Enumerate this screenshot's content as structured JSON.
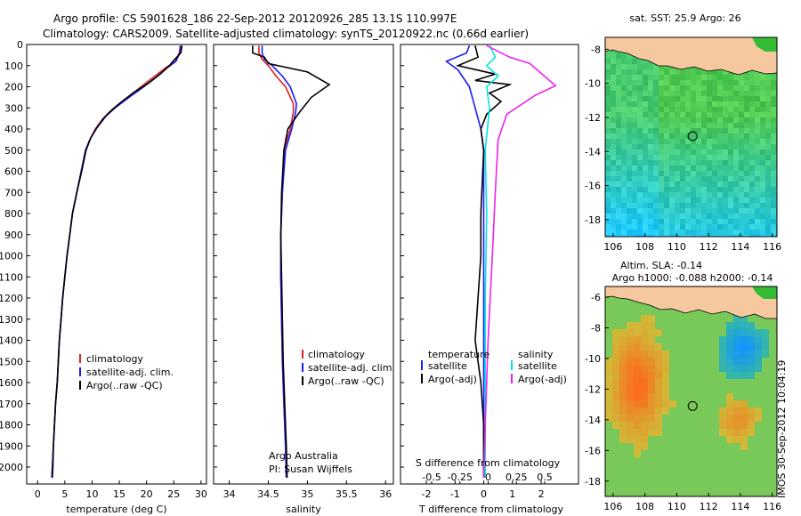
{
  "header": {
    "title_line1": "Argo profile: CS 5901628_186 22-Sep-2012 20120926_285 13.1S 110.997E",
    "title_line2": "Climatology: CARS2009. Satellite-adjusted climatology: synTS_20120922.nc (0.66d earlier)"
  },
  "timestamp": "IMOS 30-Sep-2012 10:04:19",
  "colors": {
    "climatology": "#dd2222",
    "satellite": "#1a1aff",
    "argo": "#000000",
    "sat_sal": "#00e5e5",
    "argo_sal": "#ee22ee",
    "land": "#f5c8a0"
  },
  "chart_data": [
    {
      "type": "line",
      "xlabel": "temperature (deg C)",
      "ylabel": "",
      "xlim": [
        -2,
        31
      ],
      "ylim": [
        2080,
        0
      ],
      "xticks": [
        0,
        5,
        10,
        15,
        20,
        25,
        30
      ],
      "yticks": [
        0,
        100,
        200,
        300,
        400,
        500,
        600,
        700,
        800,
        900,
        1000,
        1100,
        1200,
        1300,
        1400,
        1500,
        1600,
        1700,
        1800,
        1900,
        2000
      ],
      "legend": {
        "placement": "lower-center",
        "labels": [
          "climatology",
          "satellite-adj. clim.",
          "Argo(..raw -QC)"
        ]
      },
      "series": [
        {
          "name": "climatology",
          "color": "#dd2222",
          "points": [
            [
              26.2,
              5
            ],
            [
              26,
              40
            ],
            [
              25.3,
              80
            ],
            [
              23.5,
              110
            ],
            [
              21.5,
              150
            ],
            [
              19,
              200
            ],
            [
              16.5,
              250
            ],
            [
              14,
              300
            ],
            [
              12,
              350
            ],
            [
              10.6,
              400
            ],
            [
              9.6,
              450
            ],
            [
              8.8,
              500
            ],
            [
              8,
              600
            ],
            [
              7.2,
              700
            ],
            [
              6.4,
              800
            ],
            [
              5.9,
              900
            ],
            [
              5.4,
              1000
            ],
            [
              5,
              1100
            ],
            [
              4.6,
              1200
            ],
            [
              4.3,
              1300
            ],
            [
              4,
              1400
            ],
            [
              3.8,
              1500
            ],
            [
              3.6,
              1600
            ],
            [
              3.3,
              1700
            ],
            [
              3.1,
              1800
            ],
            [
              2.9,
              1900
            ],
            [
              2.7,
              2000
            ],
            [
              2.6,
              2050
            ]
          ]
        },
        {
          "name": "satellite-adj. clim.",
          "color": "#1a1aff",
          "points": [
            [
              26.3,
              5
            ],
            [
              26.1,
              40
            ],
            [
              25.4,
              80
            ],
            [
              23.8,
              110
            ],
            [
              22,
              150
            ],
            [
              19.5,
              200
            ],
            [
              16.8,
              250
            ],
            [
              14.2,
              300
            ],
            [
              12.1,
              350
            ],
            [
              10.7,
              400
            ],
            [
              9.6,
              450
            ],
            [
              8.8,
              500
            ],
            [
              8,
              600
            ],
            [
              7.2,
              700
            ],
            [
              6.4,
              800
            ],
            [
              5.9,
              900
            ],
            [
              5.4,
              1000
            ],
            [
              5,
              1100
            ],
            [
              4.6,
              1200
            ],
            [
              4.3,
              1300
            ],
            [
              4,
              1400
            ],
            [
              3.8,
              1500
            ],
            [
              3.6,
              1600
            ],
            [
              3.3,
              1700
            ],
            [
              3.1,
              1800
            ],
            [
              2.9,
              1900
            ],
            [
              2.7,
              2000
            ],
            [
              2.6,
              2050
            ]
          ]
        },
        {
          "name": "Argo(..raw -QC)",
          "color": "#000000",
          "points": [
            [
              26.5,
              5
            ],
            [
              26.3,
              40
            ],
            [
              25,
              75
            ],
            [
              24.2,
              100
            ],
            [
              22.5,
              140
            ],
            [
              20.5,
              180
            ],
            [
              17.5,
              230
            ],
            [
              15,
              280
            ],
            [
              12.8,
              330
            ],
            [
              11,
              390
            ],
            [
              9.8,
              440
            ],
            [
              8.9,
              500
            ],
            [
              8.1,
              600
            ],
            [
              7.2,
              700
            ],
            [
              6.4,
              800
            ],
            [
              5.9,
              900
            ],
            [
              5.4,
              1000
            ],
            [
              5,
              1100
            ],
            [
              4.6,
              1200
            ],
            [
              4.3,
              1300
            ],
            [
              4,
              1400
            ],
            [
              3.8,
              1500
            ],
            [
              3.6,
              1600
            ],
            [
              3.3,
              1700
            ],
            [
              3.1,
              1800
            ],
            [
              2.9,
              1900
            ],
            [
              2.8,
              2000
            ],
            [
              2.7,
              2050
            ]
          ]
        }
      ]
    },
    {
      "type": "line",
      "xlabel": "salinity",
      "ylabel": "",
      "xlim": [
        33.8,
        36.1
      ],
      "ylim": [
        2080,
        0
      ],
      "xticks": [
        34,
        34.5,
        35,
        35.5,
        36
      ],
      "legend": {
        "placement": "center",
        "labels": [
          "climatology",
          "satellite-adj. clim.",
          "Argo(..raw -QC)"
        ]
      },
      "annotations": [
        "Argo Australia",
        "PI: Susan Wijffels"
      ],
      "series": [
        {
          "name": "climatology",
          "color": "#dd2222",
          "points": [
            [
              34.38,
              5
            ],
            [
              34.38,
              40
            ],
            [
              34.42,
              70
            ],
            [
              34.5,
              100
            ],
            [
              34.6,
              150
            ],
            [
              34.72,
              200
            ],
            [
              34.82,
              280
            ],
            [
              34.82,
              320
            ],
            [
              34.78,
              400
            ],
            [
              34.7,
              500
            ],
            [
              34.68,
              700
            ],
            [
              34.66,
              900
            ],
            [
              34.66,
              1100
            ],
            [
              34.67,
              1300
            ],
            [
              34.68,
              1500
            ],
            [
              34.7,
              1700
            ],
            [
              34.72,
              1900
            ],
            [
              34.73,
              2050
            ]
          ]
        },
        {
          "name": "satellite-adj. clim.",
          "color": "#1a1aff",
          "points": [
            [
              34.42,
              5
            ],
            [
              34.42,
              40
            ],
            [
              34.45,
              70
            ],
            [
              34.55,
              100
            ],
            [
              34.68,
              150
            ],
            [
              34.78,
              200
            ],
            [
              34.86,
              280
            ],
            [
              34.85,
              320
            ],
            [
              34.8,
              400
            ],
            [
              34.72,
              500
            ],
            [
              34.68,
              700
            ],
            [
              34.66,
              900
            ],
            [
              34.66,
              1100
            ],
            [
              34.67,
              1300
            ],
            [
              34.68,
              1500
            ],
            [
              34.7,
              1700
            ],
            [
              34.72,
              1900
            ],
            [
              34.73,
              2050
            ]
          ]
        },
        {
          "name": "Argo(..raw -QC)",
          "color": "#000000",
          "points": [
            [
              34.3,
              5
            ],
            [
              34.3,
              40
            ],
            [
              34.45,
              60
            ],
            [
              34.5,
              90
            ],
            [
              35,
              130
            ],
            [
              35.28,
              190
            ],
            [
              35.05,
              250
            ],
            [
              34.9,
              320
            ],
            [
              34.75,
              400
            ],
            [
              34.7,
              500
            ],
            [
              34.67,
              700
            ],
            [
              34.66,
              900
            ],
            [
              34.67,
              1100
            ],
            [
              34.68,
              1300
            ],
            [
              34.69,
              1500
            ],
            [
              34.71,
              1700
            ],
            [
              34.73,
              1900
            ],
            [
              34.74,
              2050
            ]
          ]
        }
      ]
    },
    {
      "type": "line",
      "xlabel": "T difference from climatology",
      "xlabel_top": "S difference from climatology",
      "ylabel": "",
      "xlim": [
        -2.9,
        3.3
      ],
      "ylim": [
        2080,
        0
      ],
      "xticks": [
        -2,
        -1,
        0,
        1,
        2
      ],
      "xticks_top": [
        "-0.5",
        "-0.25",
        "0",
        "0.25",
        "0.5"
      ],
      "legend": {
        "placement": "center",
        "labels": [
          "temperature",
          "satellite",
          "Argo(-adj)",
          "salinity",
          "satellite",
          "Argo(-adj)"
        ]
      },
      "series": [
        {
          "name": "satellite",
          "color": "#1a1aff",
          "points": [
            [
              -0.5,
              5
            ],
            [
              -0.6,
              40
            ],
            [
              -1.3,
              80
            ],
            [
              -0.9,
              120
            ],
            [
              -0.5,
              200
            ],
            [
              -0.3,
              300
            ],
            [
              -0.1,
              400
            ],
            [
              0,
              500
            ],
            [
              0,
              800
            ],
            [
              0,
              1200
            ],
            [
              0,
              1600
            ],
            [
              0,
              2050
            ]
          ]
        },
        {
          "name": "Argo(-adj)",
          "color": "#000000",
          "points": [
            [
              -0.3,
              5
            ],
            [
              -0.2,
              60
            ],
            [
              -0.9,
              100
            ],
            [
              0.4,
              140
            ],
            [
              -0.3,
              170
            ],
            [
              0.9,
              190
            ],
            [
              0.2,
              230
            ],
            [
              0.6,
              270
            ],
            [
              0.1,
              330
            ],
            [
              -0.1,
              400
            ],
            [
              0,
              500
            ],
            [
              -0.1,
              800
            ],
            [
              -0.1,
              1000
            ],
            [
              -0.2,
              1200
            ],
            [
              -0.3,
              1400
            ],
            [
              -0.1,
              1600
            ],
            [
              0,
              1800
            ],
            [
              0,
              2050
            ]
          ]
        },
        {
          "name": "satellite",
          "color": "#00e5e5",
          "points": [
            [
              0.2,
              5
            ],
            [
              0.4,
              60
            ],
            [
              0.1,
              100
            ],
            [
              0.5,
              150
            ],
            [
              0.1,
              200
            ],
            [
              0.2,
              300
            ],
            [
              0.05,
              500
            ],
            [
              0.1,
              800
            ],
            [
              0.05,
              1200
            ],
            [
              0.05,
              1600
            ],
            [
              0.05,
              2050
            ]
          ]
        },
        {
          "name": "Argo(-adj)",
          "color": "#ee22ee",
          "points": [
            [
              0.1,
              5
            ],
            [
              0.9,
              60
            ],
            [
              1.6,
              90
            ],
            [
              2.5,
              195
            ],
            [
              1.8,
              240
            ],
            [
              0.8,
              330
            ],
            [
              0.5,
              450
            ],
            [
              0.4,
              700
            ],
            [
              0.3,
              1000
            ],
            [
              0.15,
              1400
            ],
            [
              0.05,
              1800
            ],
            [
              0,
              2050
            ]
          ]
        }
      ]
    },
    {
      "type": "heatmap",
      "title": "sat. SST: 25.9 Argo: 26",
      "xticks": [
        106,
        108,
        110,
        112,
        114,
        116
      ],
      "yticks": [
        -8,
        -10,
        -12,
        -14,
        -16,
        -18
      ],
      "xlim": [
        105.5,
        116.3
      ],
      "ylim": [
        -19,
        -7.3
      ],
      "marker": {
        "lon": 110.997,
        "lat": -13.1
      }
    },
    {
      "type": "heatmap",
      "title": "Altim. SLA: -0.14",
      "subtitle": "Argo h1000: -0.088 h2000: -0.14",
      "xticks": [
        106,
        108,
        110,
        112,
        114,
        116
      ],
      "yticks": [
        -6,
        -8,
        -10,
        -12,
        -14,
        -16,
        -18
      ],
      "xlim": [
        105.5,
        116.3
      ],
      "ylim": [
        -19,
        -5.3
      ],
      "marker": {
        "lon": 110.997,
        "lat": -13.1
      }
    }
  ]
}
